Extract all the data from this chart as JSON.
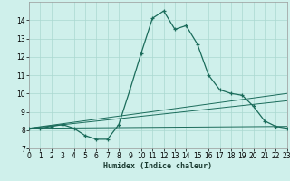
{
  "xlabel": "Humidex (Indice chaleur)",
  "background_color": "#cff0eb",
  "grid_color": "#aad8d0",
  "line_color": "#1a6b5a",
  "xlim": [
    0,
    23
  ],
  "ylim": [
    7,
    15
  ],
  "xticks": [
    0,
    1,
    2,
    3,
    4,
    5,
    6,
    7,
    8,
    9,
    10,
    11,
    12,
    13,
    14,
    15,
    16,
    17,
    18,
    19,
    20,
    21,
    22,
    23
  ],
  "yticks": [
    7,
    8,
    9,
    10,
    11,
    12,
    13,
    14
  ],
  "series1_x": [
    0,
    1,
    2,
    3,
    4,
    5,
    6,
    7,
    8,
    9,
    10,
    11,
    12,
    13,
    14,
    15,
    16,
    17,
    18,
    19,
    20,
    21,
    22,
    23
  ],
  "series1_y": [
    8.1,
    8.1,
    8.2,
    8.3,
    8.1,
    7.7,
    7.5,
    7.5,
    8.3,
    10.2,
    12.2,
    14.1,
    14.5,
    13.5,
    13.7,
    12.7,
    11.0,
    10.2,
    10.0,
    9.9,
    9.3,
    8.5,
    8.2,
    8.1
  ],
  "series2_x": [
    0,
    23
  ],
  "series2_y": [
    8.1,
    8.2
  ],
  "series3_x": [
    0,
    23
  ],
  "series3_y": [
    8.1,
    10.0
  ],
  "series4_x": [
    0,
    23
  ],
  "series4_y": [
    8.1,
    9.6
  ]
}
